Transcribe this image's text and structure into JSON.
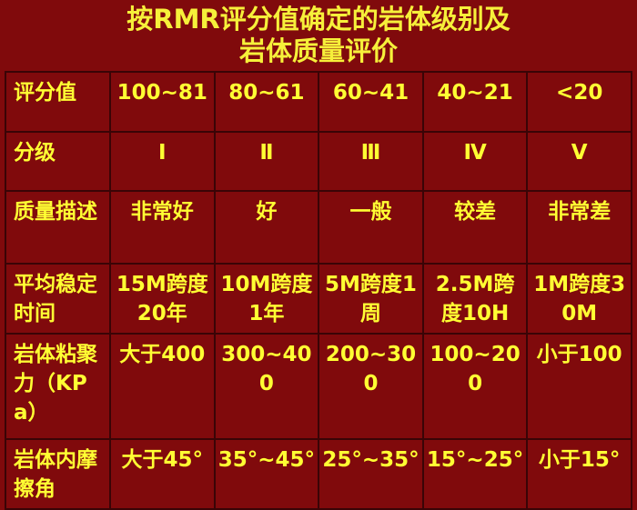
{
  "title": [
    "按RMR评分值确定的岩体级别及",
    "岩体质量评价"
  ],
  "table": {
    "rows": [
      {
        "header": "评分值",
        "cells": [
          "100~81",
          "80~61",
          "60~41",
          "40~21",
          "<20"
        ]
      },
      {
        "header": "分级",
        "cells": [
          "Ⅰ",
          "Ⅱ",
          "Ⅲ",
          "Ⅳ",
          "Ⅴ"
        ]
      },
      {
        "header": "质量描述",
        "cells": [
          "非常好",
          "好",
          "一般",
          "较差",
          "非常差"
        ]
      },
      {
        "header": "平均稳定时间",
        "cells": [
          "15M跨度20年",
          "10M跨度1年",
          "5M跨度1周",
          "2.5M跨度10H",
          "1M跨度30M"
        ]
      },
      {
        "header": "岩体粘聚力（KPa）",
        "cells": [
          "大于400",
          "300~400",
          "200~300",
          "100~200",
          "小于100"
        ]
      },
      {
        "header": "岩体内摩擦角",
        "cells": [
          "大于45°",
          "35°~45°",
          "25°~35°",
          "15°~25°",
          "小于15°"
        ]
      }
    ]
  },
  "colors": {
    "background": "#800a0c",
    "text": "#ffff33",
    "grid": "#3a0406"
  }
}
